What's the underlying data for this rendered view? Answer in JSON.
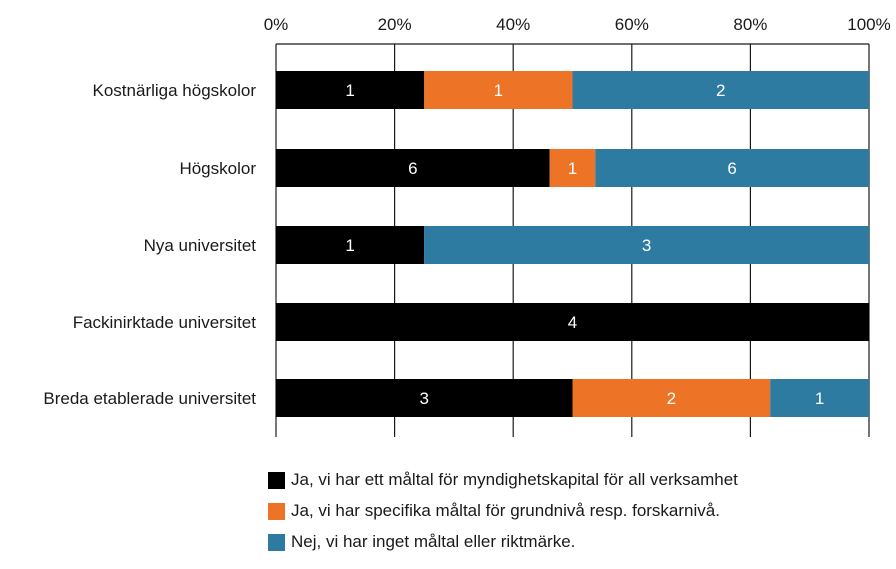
{
  "chart_data": {
    "type": "bar",
    "orientation": "horizontal",
    "stacked": "percent",
    "categories": [
      "Kostnärliga högskolor",
      "Högskolor",
      "Nya universitet",
      "Fackinirktade universitet",
      "Breda etablerade universitet"
    ],
    "series": [
      {
        "name": "Ja, vi har ett måltal för myndighetskapital för all verksamhet",
        "values": [
          1,
          6,
          1,
          4,
          3
        ],
        "color": "#000000"
      },
      {
        "name": "Ja, vi har specifika måltal för  grundnivå resp. forskarnivå.",
        "values": [
          1,
          1,
          0,
          0,
          2
        ],
        "color": "#ED7326"
      },
      {
        "name": "Nej, vi har inget måltal eller riktmärke.",
        "values": [
          2,
          6,
          3,
          0,
          1
        ],
        "color": "#2E7BA1"
      }
    ],
    "x_ticks": [
      "0%",
      "20%",
      "40%",
      "60%",
      "80%",
      "100%"
    ],
    "xlim": [
      0,
      100
    ],
    "x_axis_position": "top",
    "legend_position": "bottom",
    "grid": true
  }
}
